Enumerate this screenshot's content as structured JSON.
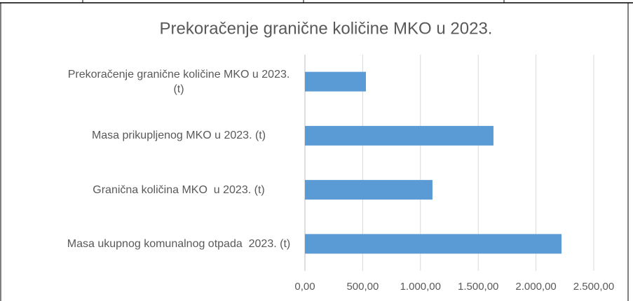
{
  "chart_data": {
    "type": "barh",
    "title": "Prekoračenje granične količine MKO u 2023.",
    "categories": [
      "Prekoračenje granične količine MKO u 2023.  (t)",
      "Masa prikupljenog MKO u 2023. (t)",
      "Granična količina MKO  u 2023. (t)",
      "Masa ukupnog komunalnog otpada  2023. (t)"
    ],
    "values": [
      528,
      1632,
      1104,
      2221
    ],
    "color": "#5b9bd5",
    "xlim": [
      0,
      2500
    ],
    "xticks": [
      {
        "value": 0,
        "label": "0,00"
      },
      {
        "value": 500,
        "label": "500,00"
      },
      {
        "value": 1000,
        "label": "1.000,00"
      },
      {
        "value": 1500,
        "label": "1.500,00"
      },
      {
        "value": 2000,
        "label": "2.000,00"
      },
      {
        "value": 2500,
        "label": "2.500,00"
      }
    ],
    "grid": true
  }
}
